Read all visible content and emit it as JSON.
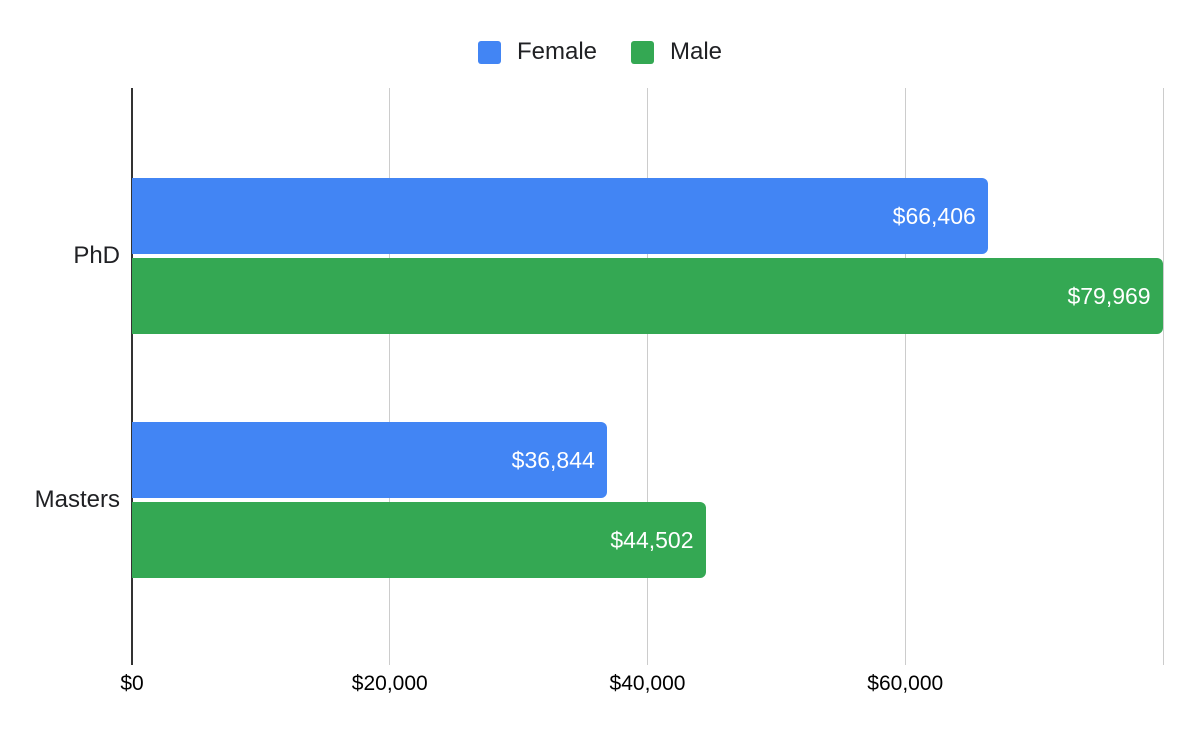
{
  "chart_data": {
    "type": "bar",
    "orientation": "horizontal",
    "title": "",
    "xlabel": "",
    "ylabel": "",
    "grid": true,
    "legend_position": "top",
    "categories": [
      "PhD",
      "Masters"
    ],
    "series": [
      {
        "name": "Female",
        "color": "#4285F4",
        "values": [
          66406,
          36844
        ],
        "data_labels": [
          "$66,406",
          "$36,844"
        ]
      },
      {
        "name": "Male",
        "color": "#34A853",
        "values": [
          79969,
          44502
        ],
        "data_labels": [
          "$79,969",
          "$44,502"
        ]
      }
    ],
    "x_axis": {
      "min": 0,
      "max": 80000,
      "ticks": [
        {
          "value": 0,
          "label": "$0"
        },
        {
          "value": 20000,
          "label": "$20,000"
        },
        {
          "value": 40000,
          "label": "$40,000"
        },
        {
          "value": 60000,
          "label": "$60,000"
        },
        {
          "value": 80000,
          "label": ""
        }
      ]
    }
  },
  "colors": {
    "background": "#ffffff",
    "gridline": "#cccccc",
    "axis_line": "#333333",
    "bar_label_text": "#ffffff",
    "axis_text": "#000000",
    "legend_text": "#202124"
  }
}
